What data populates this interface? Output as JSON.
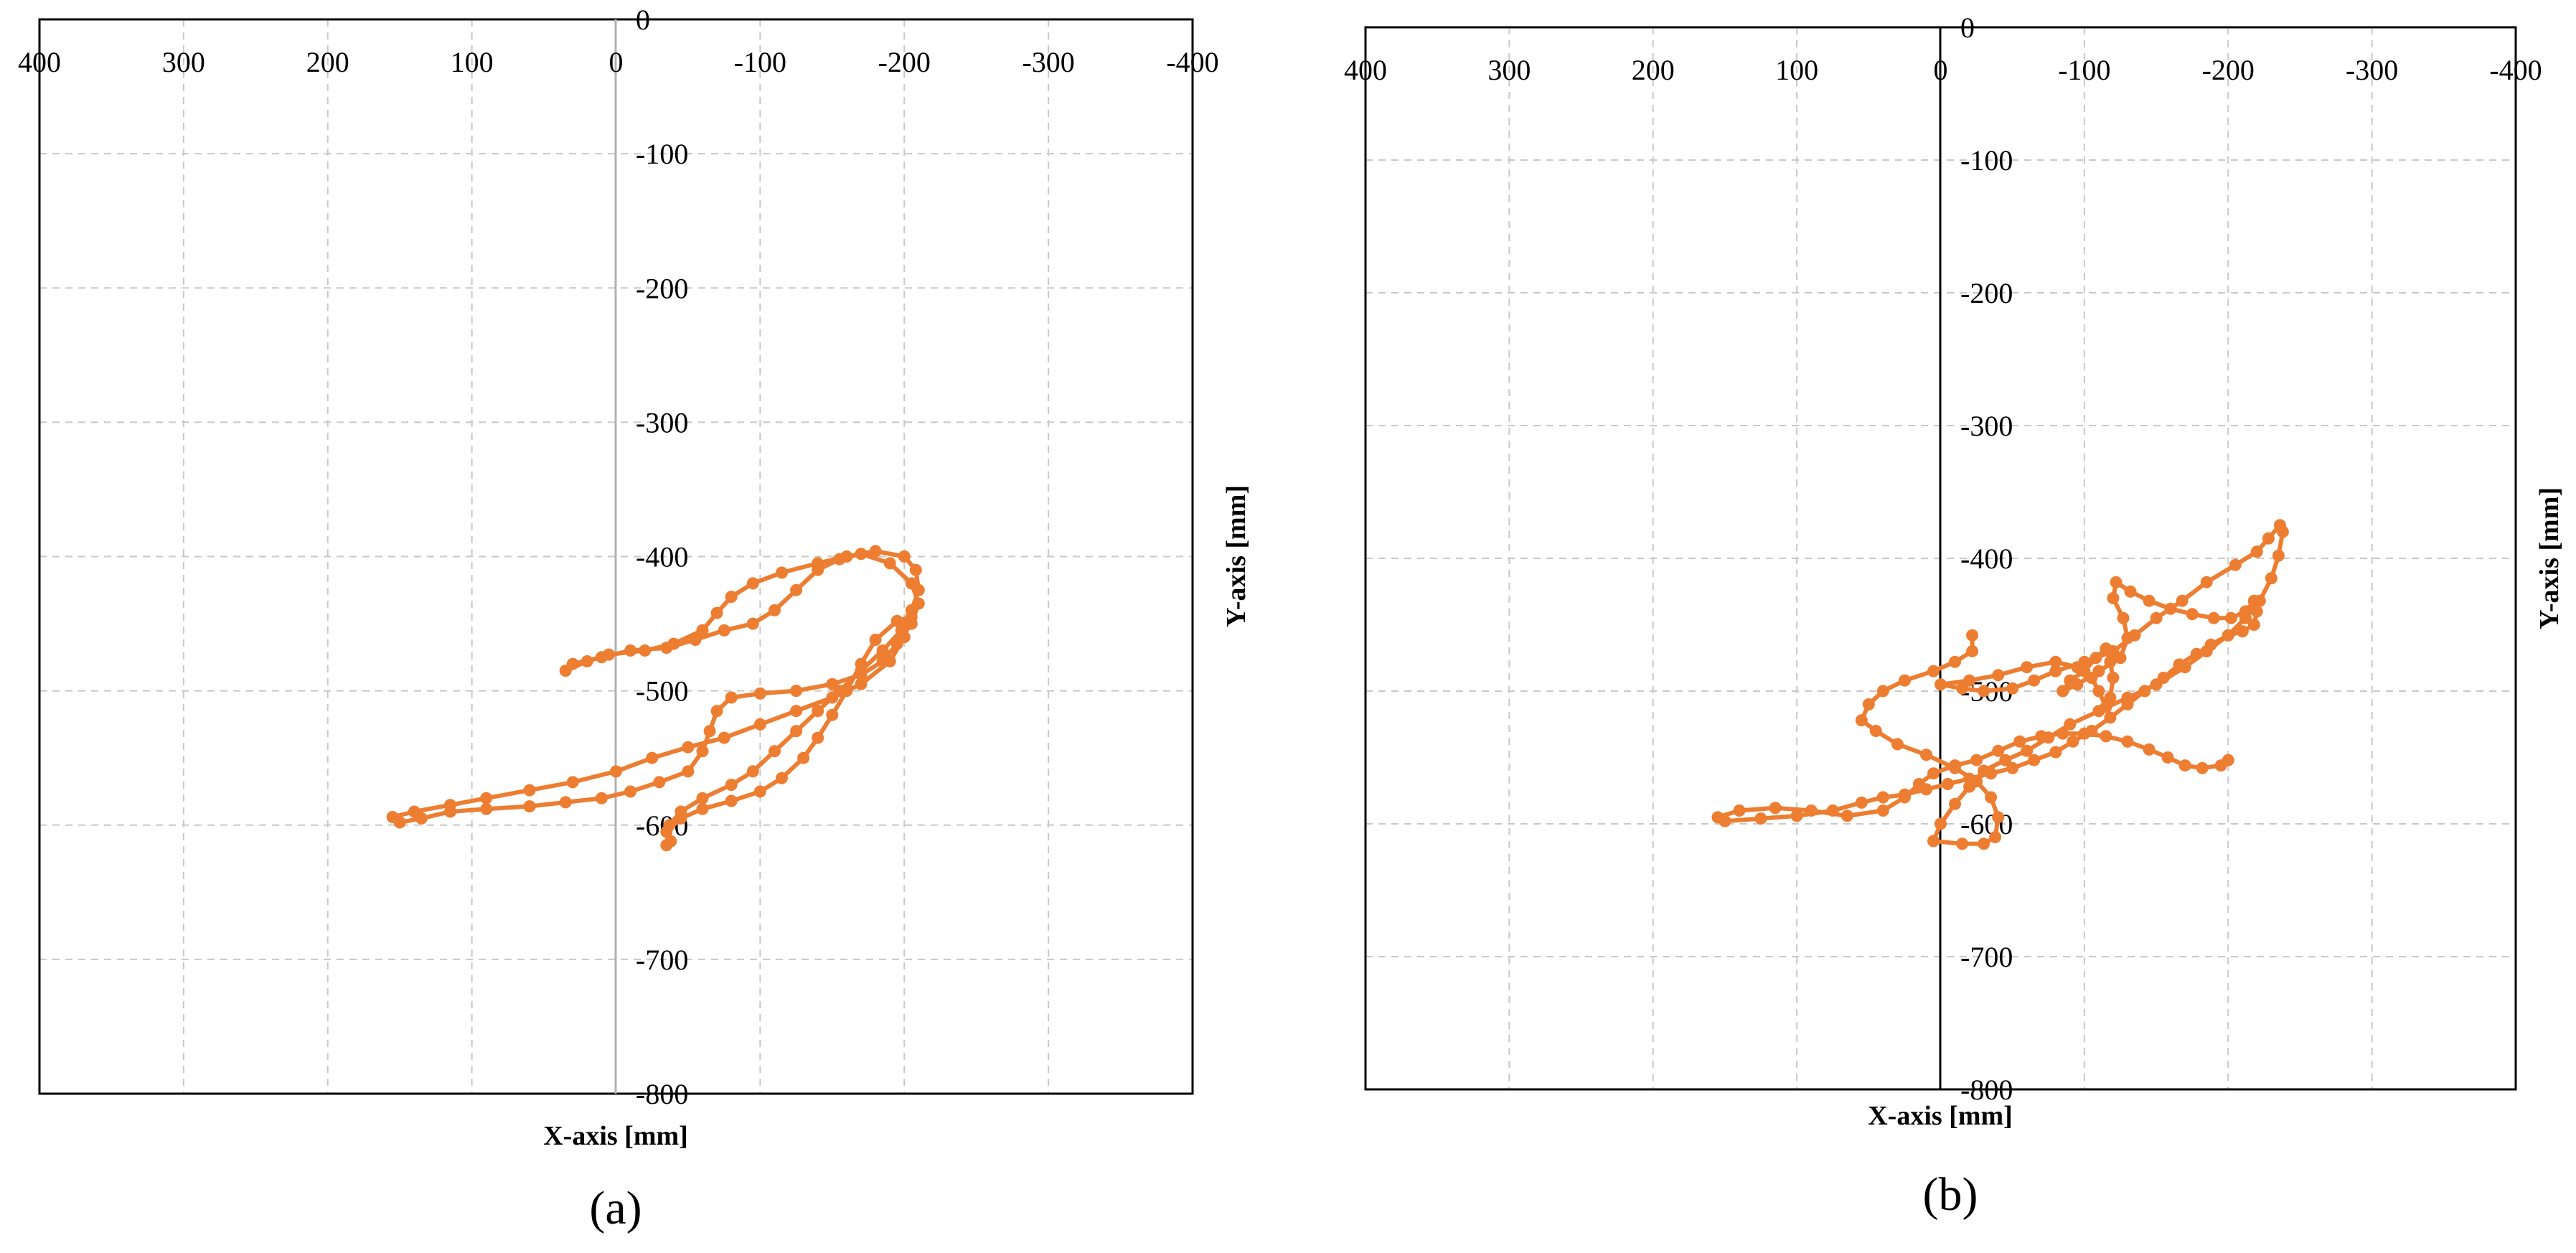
{
  "chart_data": [
    {
      "type": "line",
      "panel_label": "(a)",
      "xlabel": "X-axis [mm]",
      "ylabel": "Y-axis [mm]",
      "xlim": [
        400,
        -400
      ],
      "ylim": [
        0,
        -800
      ],
      "x_reversed": true,
      "grid": true,
      "x_ticks": [
        "400",
        "300",
        "200",
        "100",
        "0",
        "-100",
        "-200",
        "-300",
        "-400"
      ],
      "y_ticks": [
        "0",
        "-100",
        "-200",
        "-300",
        "-400",
        "-500",
        "-600",
        "-700",
        "-800"
      ],
      "series": [
        {
          "color": "#ed7d31",
          "points": [
            [
              -35,
              -615
            ],
            [
              -37,
              -600
            ],
            [
              -45,
              -590
            ],
            [
              -60,
              -580
            ],
            [
              -80,
              -570
            ],
            [
              -95,
              -560
            ],
            [
              -110,
              -545
            ],
            [
              -125,
              -530
            ],
            [
              -140,
              -515
            ],
            [
              -155,
              -500
            ],
            [
              -170,
              -485
            ],
            [
              -185,
              -470
            ],
            [
              -198,
              -455
            ],
            [
              -205,
              -440
            ],
            [
              -210,
              -425
            ],
            [
              -208,
              -410
            ],
            [
              -200,
              -400
            ],
            [
              -180,
              -396
            ],
            [
              -160,
              -400
            ],
            [
              -140,
              -405
            ],
            [
              -115,
              -412
            ],
            [
              -95,
              -420
            ],
            [
              -80,
              -430
            ],
            [
              -70,
              -442
            ],
            [
              -60,
              -455
            ],
            [
              -40,
              -465
            ],
            [
              -20,
              -470
            ],
            [
              5,
              -473
            ],
            [
              20,
              -478
            ],
            [
              35,
              -485
            ],
            [
              30,
              -480
            ],
            [
              10,
              -475
            ],
            [
              -10,
              -470
            ],
            [
              -35,
              -468
            ],
            [
              -55,
              -462
            ],
            [
              -75,
              -455
            ],
            [
              -95,
              -450
            ],
            [
              -110,
              -440
            ],
            [
              -125,
              -425
            ],
            [
              -140,
              -410
            ],
            [
              -155,
              -402
            ],
            [
              -170,
              -398
            ],
            [
              -190,
              -405
            ],
            [
              -205,
              -420
            ],
            [
              -210,
              -435
            ],
            [
              -205,
              -450
            ],
            [
              -195,
              -465
            ],
            [
              -185,
              -478
            ],
            [
              -170,
              -488
            ],
            [
              -150,
              -495
            ],
            [
              -125,
              -500
            ],
            [
              -100,
              -502
            ],
            [
              -80,
              -505
            ],
            [
              -70,
              -515
            ],
            [
              -65,
              -530
            ],
            [
              -60,
              -545
            ],
            [
              -50,
              -560
            ],
            [
              -30,
              -568
            ],
            [
              -10,
              -575
            ],
            [
              10,
              -580
            ],
            [
              35,
              -583
            ],
            [
              60,
              -586
            ],
            [
              90,
              -588
            ],
            [
              115,
              -590
            ],
            [
              135,
              -595
            ],
            [
              150,
              -598
            ],
            [
              155,
              -594
            ],
            [
              140,
              -590
            ],
            [
              115,
              -585
            ],
            [
              90,
              -580
            ],
            [
              60,
              -574
            ],
            [
              30,
              -568
            ],
            [
              0,
              -560
            ],
            [
              -25,
              -550
            ],
            [
              -50,
              -542
            ],
            [
              -75,
              -535
            ],
            [
              -100,
              -525
            ],
            [
              -125,
              -515
            ],
            [
              -150,
              -505
            ],
            [
              -170,
              -495
            ],
            [
              -190,
              -478
            ],
            [
              -200,
              -460
            ],
            [
              -205,
              -445
            ],
            [
              -195,
              -448
            ],
            [
              -180,
              -462
            ],
            [
              -170,
              -480
            ],
            [
              -160,
              -500
            ],
            [
              -150,
              -518
            ],
            [
              -140,
              -535
            ],
            [
              -130,
              -550
            ],
            [
              -115,
              -565
            ],
            [
              -100,
              -575
            ],
            [
              -80,
              -582
            ],
            [
              -60,
              -588
            ],
            [
              -45,
              -595
            ],
            [
              -35,
              -605
            ],
            [
              -38,
              -612
            ]
          ]
        }
      ]
    },
    {
      "type": "line",
      "panel_label": "(b)",
      "xlabel": "X-axis [mm]",
      "ylabel": "Y-axis [mm]",
      "xlim": [
        400,
        -400
      ],
      "ylim": [
        0,
        -800
      ],
      "x_reversed": true,
      "grid": true,
      "x_ticks": [
        "400",
        "300",
        "200",
        "100",
        "0",
        "-100",
        "-200",
        "-300",
        "-400"
      ],
      "y_ticks": [
        "0",
        "-100",
        "-200",
        "-300",
        "-400",
        "-500",
        "-600",
        "-700",
        "-800"
      ],
      "series": [
        {
          "color": "#ed7d31",
          "points": [
            [
              -22,
              -458
            ],
            [
              -22,
              -470
            ],
            [
              -10,
              -478
            ],
            [
              5,
              -485
            ],
            [
              25,
              -492
            ],
            [
              40,
              -500
            ],
            [
              50,
              -510
            ],
            [
              55,
              -522
            ],
            [
              45,
              -530
            ],
            [
              30,
              -540
            ],
            [
              10,
              -548
            ],
            [
              -10,
              -558
            ],
            [
              -25,
              -568
            ],
            [
              -35,
              -580
            ],
            [
              -40,
              -595
            ],
            [
              -38,
              -610
            ],
            [
              -30,
              -615
            ],
            [
              -15,
              -615
            ],
            [
              5,
              -613
            ],
            [
              0,
              -600
            ],
            [
              -10,
              -585
            ],
            [
              -20,
              -572
            ],
            [
              -30,
              -560
            ],
            [
              -45,
              -552
            ],
            [
              -60,
              -545
            ],
            [
              -75,
              -535
            ],
            [
              -90,
              -525
            ],
            [
              -110,
              -515
            ],
            [
              -130,
              -505
            ],
            [
              -150,
              -495
            ],
            [
              -170,
              -482
            ],
            [
              -185,
              -470
            ],
            [
              -200,
              -458
            ],
            [
              -212,
              -445
            ],
            [
              -222,
              -432
            ],
            [
              -230,
              -415
            ],
            [
              -235,
              -398
            ],
            [
              -238,
              -380
            ],
            [
              -236,
              -375
            ],
            [
              -228,
              -385
            ],
            [
              -220,
              -395
            ],
            [
              -205,
              -405
            ],
            [
              -185,
              -418
            ],
            [
              -168,
              -432
            ],
            [
              -150,
              -445
            ],
            [
              -135,
              -458
            ],
            [
              -120,
              -470
            ],
            [
              -100,
              -478
            ],
            [
              -80,
              -485
            ],
            [
              -65,
              -492
            ],
            [
              -50,
              -498
            ],
            [
              -30,
              -500
            ],
            [
              -15,
              -498
            ],
            [
              0,
              -495
            ],
            [
              -20,
              -492
            ],
            [
              -40,
              -488
            ],
            [
              -60,
              -482
            ],
            [
              -80,
              -478
            ],
            [
              -95,
              -482
            ],
            [
              -105,
              -490
            ],
            [
              -110,
              -500
            ],
            [
              -115,
              -512
            ],
            [
              -118,
              -505
            ],
            [
              -120,
              -490
            ],
            [
              -118,
              -478
            ],
            [
              -115,
              -468
            ],
            [
              -108,
              -475
            ],
            [
              -100,
              -485
            ],
            [
              -90,
              -492
            ],
            [
              -85,
              -500
            ],
            [
              -95,
              -495
            ],
            [
              -110,
              -485
            ],
            [
              -125,
              -475
            ],
            [
              -130,
              -460
            ],
            [
              -127,
              -445
            ],
            [
              -120,
              -430
            ],
            [
              -122,
              -418
            ],
            [
              -132,
              -425
            ],
            [
              -145,
              -432
            ],
            [
              -160,
              -438
            ],
            [
              -175,
              -442
            ],
            [
              -190,
              -445
            ],
            [
              -202,
              -445
            ],
            [
              -212,
              -440
            ],
            [
              -218,
              -432
            ],
            [
              -220,
              -440
            ],
            [
              -218,
              -450
            ],
            [
              -210,
              -455
            ],
            [
              -200,
              -458
            ],
            [
              -188,
              -465
            ],
            [
              -178,
              -472
            ],
            [
              -166,
              -480
            ],
            [
              -155,
              -490
            ],
            [
              -142,
              -500
            ],
            [
              -130,
              -510
            ],
            [
              -118,
              -520
            ],
            [
              -105,
              -530
            ],
            [
              -92,
              -538
            ],
            [
              -80,
              -546
            ],
            [
              -65,
              -552
            ],
            [
              -50,
              -558
            ],
            [
              -35,
              -562
            ],
            [
              -20,
              -566
            ],
            [
              -5,
              -570
            ],
            [
              10,
              -574
            ],
            [
              25,
              -578
            ],
            [
              40,
              -580
            ],
            [
              55,
              -584
            ],
            [
              75,
              -590
            ],
            [
              100,
              -594
            ],
            [
              125,
              -596
            ],
            [
              150,
              -598
            ],
            [
              155,
              -595
            ],
            [
              140,
              -590
            ],
            [
              115,
              -588
            ],
            [
              90,
              -590
            ],
            [
              65,
              -594
            ],
            [
              40,
              -590
            ],
            [
              25,
              -580
            ],
            [
              15,
              -570
            ],
            [
              5,
              -562
            ],
            [
              -10,
              -556
            ],
            [
              -25,
              -552
            ],
            [
              -40,
              -545
            ],
            [
              -55,
              -538
            ],
            [
              -70,
              -534
            ],
            [
              -85,
              -532
            ],
            [
              -100,
              -532
            ],
            [
              -115,
              -534
            ],
            [
              -130,
              -538
            ],
            [
              -145,
              -544
            ],
            [
              -158,
              -550
            ],
            [
              -170,
              -556
            ],
            [
              -182,
              -558
            ],
            [
              -195,
              -556
            ],
            [
              -200,
              -552
            ]
          ]
        }
      ]
    }
  ]
}
